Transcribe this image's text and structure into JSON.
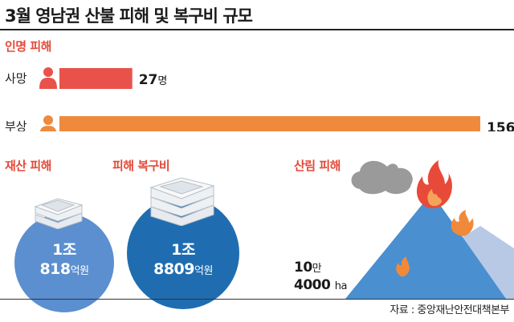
{
  "title": "3월 영남권 산불 피해 및 복구비 규모",
  "casualty": {
    "section_label": "인명 피해",
    "rows": [
      {
        "label": "사망",
        "value": 27,
        "unit": "명",
        "color": "#e9524a"
      },
      {
        "label": "부상",
        "value": 156,
        "unit": "명",
        "color": "#ef8a3d"
      }
    ]
  },
  "chart_data": {
    "type": "bar",
    "orientation": "horizontal",
    "title": "인명 피해",
    "categories": [
      "사망",
      "부상"
    ],
    "values": [
      27,
      156
    ],
    "unit": "명"
  },
  "property": {
    "section_label": "재산 피해",
    "value_line1": "1조",
    "value_line2": "818",
    "unit": "억원",
    "color": "#5b8fd0"
  },
  "recovery": {
    "section_label": "피해 복구비",
    "value_line1": "1조",
    "value_line2": "8809",
    "unit": "억원",
    "color": "#1f6db0"
  },
  "forest": {
    "section_label": "산림 피해",
    "value_line1": "10",
    "unit1": "만",
    "value_line2": "4000",
    "unit2": "ha",
    "mountain_color": "#4a8fcf",
    "mountain_back_color": "#b8c9e6",
    "flame_red": "#e84a3a",
    "flame_orange": "#f08a3a",
    "smoke_color": "#9a9a9a"
  },
  "source": "자료 : 중앙재난안전대책본부",
  "icons": [
    "person-icon",
    "money-stack-icon",
    "mountain-icon",
    "fire-icon",
    "smoke-icon"
  ]
}
